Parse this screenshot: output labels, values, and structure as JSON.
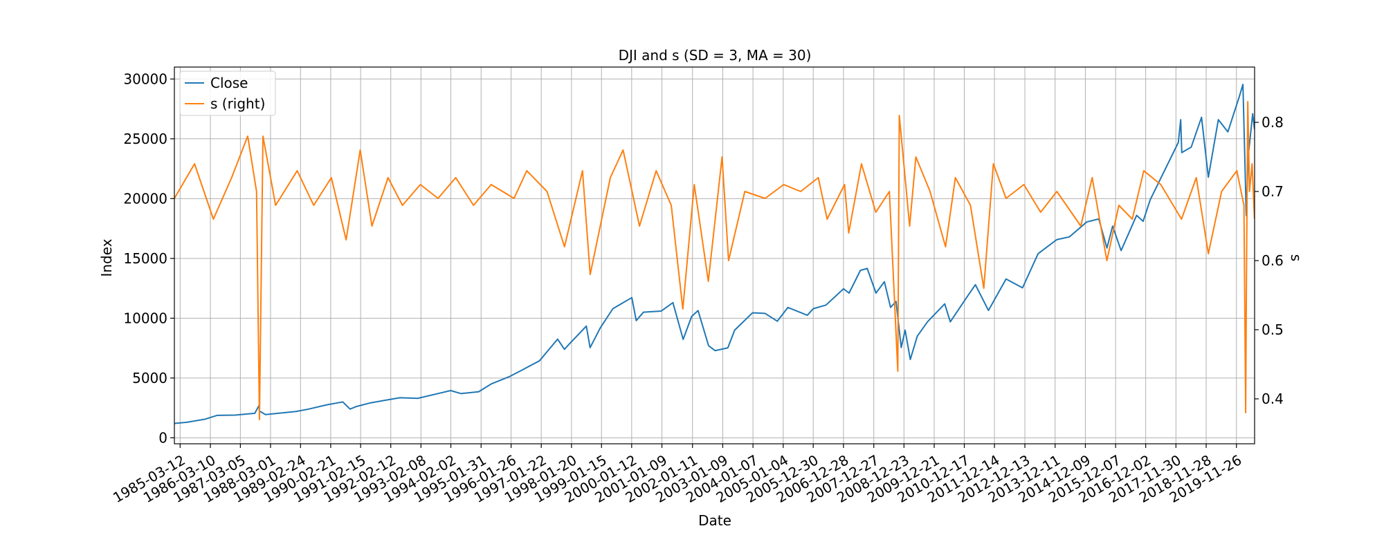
{
  "chart_data": {
    "type": "line",
    "title": "DJI and s (SD = 3, MA = 30)",
    "xlabel": "Date",
    "ylabel": "Index",
    "ylabel_right": "s",
    "grid": true,
    "legend_position": "top-left",
    "x_tick_labels": [
      "1985-03-12",
      "1986-03-10",
      "1987-03-05",
      "1988-03-01",
      "1989-02-24",
      "1990-02-21",
      "1991-02-15",
      "1992-02-12",
      "1993-02-08",
      "1994-02-02",
      "1995-01-31",
      "1996-01-26",
      "1997-01-22",
      "1998-01-20",
      "1999-01-15",
      "2000-01-12",
      "2001-01-09",
      "2002-01-11",
      "2003-01-09",
      "2004-01-07",
      "2005-01-04",
      "2005-12-30",
      "2006-12-28",
      "2007-12-27",
      "2008-12-23",
      "2009-12-21",
      "2010-12-17",
      "2011-12-14",
      "2012-12-13",
      "2013-12-11",
      "2014-12-09",
      "2015-12-07",
      "2016-12-02",
      "2017-11-30",
      "2018-11-28",
      "2019-11-26"
    ],
    "y_left": {
      "ylim": [
        -500,
        31000
      ],
      "ticks": [
        0,
        5000,
        10000,
        15000,
        20000,
        25000,
        30000
      ]
    },
    "y_right": {
      "ylim": [
        0.335,
        0.88
      ],
      "ticks": [
        0.4,
        0.5,
        0.6,
        0.7,
        0.8
      ]
    },
    "xlim": [
      "1985-01-02",
      "2020-07-01"
    ],
    "series": [
      {
        "name": "Close",
        "axis": "left",
        "color": "#1f77b4",
        "x": [
          "1985-01-02",
          "1985-06-01",
          "1986-01-01",
          "1986-06-01",
          "1987-01-01",
          "1987-08-25",
          "1987-10-16",
          "1987-10-19",
          "1987-12-31",
          "1988-06-01",
          "1989-01-01",
          "1989-06-01",
          "1990-01-01",
          "1990-07-16",
          "1990-10-11",
          "1991-01-01",
          "1991-06-01",
          "1992-01-01",
          "1992-06-01",
          "1993-01-01",
          "1994-01-31",
          "1994-06-01",
          "1995-01-01",
          "1995-06-01",
          "1996-01-01",
          "1996-06-01",
          "1997-01-01",
          "1997-08-06",
          "1997-10-27",
          "1998-01-01",
          "1998-07-17",
          "1998-08-31",
          "1999-01-01",
          "1999-06-01",
          "2000-01-14",
          "2000-03-07",
          "2000-06-01",
          "2001-01-01",
          "2001-05-21",
          "2001-09-21",
          "2002-01-01",
          "2002-03-19",
          "2002-07-23",
          "2002-10-09",
          "2003-03-11",
          "2003-06-01",
          "2004-01-01",
          "2004-06-01",
          "2004-10-25",
          "2005-03-01",
          "2005-10-20",
          "2006-01-01",
          "2006-06-01",
          "2006-12-29",
          "2007-03-05",
          "2007-07-19",
          "2007-10-09",
          "2008-01-22",
          "2008-05-02",
          "2008-07-15",
          "2008-09-19",
          "2008-11-20",
          "2009-01-06",
          "2009-03-09",
          "2009-06-01",
          "2009-10-01",
          "2010-04-26",
          "2010-07-02",
          "2011-01-01",
          "2011-04-29",
          "2011-10-03",
          "2012-05-01",
          "2012-11-15",
          "2013-05-21",
          "2013-12-31",
          "2014-06-01",
          "2014-12-26",
          "2015-05-19",
          "2015-08-25",
          "2015-11-01",
          "2016-02-11",
          "2016-08-15",
          "2016-11-01",
          "2017-01-25",
          "2017-12-29",
          "2018-01-26",
          "2018-02-08",
          "2018-06-01",
          "2018-10-03",
          "2018-12-24",
          "2019-04-23",
          "2019-08-15",
          "2019-12-31",
          "2020-02-12",
          "2020-03-23",
          "2020-04-15",
          "2020-06-08",
          "2020-06-30"
        ],
        "values": [
          1200,
          1300,
          1550,
          1880,
          1900,
          2050,
          2720,
          2250,
          1940,
          2050,
          2200,
          2400,
          2750,
          3000,
          2400,
          2630,
          2900,
          3170,
          3350,
          3300,
          3950,
          3700,
          3850,
          4500,
          5100,
          5650,
          6440,
          8250,
          7400,
          7900,
          9340,
          7540,
          9200,
          10800,
          11720,
          9800,
          10500,
          10600,
          11300,
          8230,
          10150,
          10640,
          7700,
          7290,
          7520,
          9000,
          10450,
          10400,
          9750,
          10900,
          10250,
          10800,
          11100,
          12460,
          12100,
          14000,
          14160,
          12100,
          13050,
          10900,
          11400,
          7550,
          9000,
          6550,
          8500,
          9700,
          11200,
          9700,
          11600,
          12800,
          10650,
          13280,
          12540,
          15400,
          16570,
          16800,
          18050,
          18300,
          15870,
          17700,
          15660,
          18600,
          18100,
          19900,
          24700,
          26600,
          23850,
          24300,
          26800,
          21790,
          26600,
          25580,
          28540,
          29550,
          18590,
          23500,
          27100,
          25800
        ]
      },
      {
        "name": "s (right)",
        "axis": "right",
        "color": "#ff7f0e",
        "x": [
          "1985-01-02",
          "1985-09-01",
          "1986-04-15",
          "1986-11-20",
          "1987-06-01",
          "1987-09-15",
          "1987-10-20",
          "1987-12-01",
          "1988-05-01",
          "1989-01-15",
          "1989-08-01",
          "1990-03-01",
          "1990-08-25",
          "1991-02-10",
          "1991-07-01",
          "1992-01-10",
          "1992-07-01",
          "1993-02-01",
          "1993-09-01",
          "1994-04-01",
          "1994-11-01",
          "1995-06-01",
          "1996-03-01",
          "1996-08-01",
          "1997-04-01",
          "1997-10-28",
          "1998-06-01",
          "1998-09-01",
          "1999-05-01",
          "1999-10-01",
          "2000-04-15",
          "2000-11-01",
          "2001-05-01",
          "2001-09-17",
          "2002-02-01",
          "2002-07-20",
          "2003-01-01",
          "2003-03-20",
          "2003-10-01",
          "2004-06-01",
          "2005-01-10",
          "2005-08-01",
          "2006-03-01",
          "2006-06-15",
          "2007-01-10",
          "2007-03-01",
          "2007-08-01",
          "2008-01-20",
          "2008-07-01",
          "2008-10-10",
          "2008-10-28",
          "2009-03-01",
          "2009-05-15",
          "2009-11-01",
          "2010-05-06",
          "2010-09-01",
          "2011-03-01",
          "2011-08-08",
          "2011-12-01",
          "2012-05-01",
          "2012-12-01",
          "2013-06-20",
          "2014-01-01",
          "2014-10-15",
          "2015-03-01",
          "2015-08-24",
          "2016-01-15",
          "2016-06-24",
          "2016-11-09",
          "2017-06-01",
          "2018-02-05",
          "2018-08-01",
          "2018-12-24",
          "2019-06-01",
          "2019-12-01",
          "2020-02-24",
          "2020-03-16",
          "2020-03-24",
          "2020-04-10",
          "2020-05-01",
          "2020-06-01",
          "2020-06-30"
        ],
        "values": [
          0.69,
          0.74,
          0.66,
          0.72,
          0.78,
          0.7,
          0.37,
          0.78,
          0.68,
          0.73,
          0.68,
          0.72,
          0.63,
          0.76,
          0.65,
          0.72,
          0.68,
          0.71,
          0.69,
          0.72,
          0.68,
          0.71,
          0.69,
          0.73,
          0.7,
          0.62,
          0.73,
          0.58,
          0.72,
          0.76,
          0.65,
          0.73,
          0.68,
          0.53,
          0.71,
          0.57,
          0.75,
          0.6,
          0.7,
          0.69,
          0.71,
          0.7,
          0.72,
          0.66,
          0.71,
          0.64,
          0.74,
          0.67,
          0.7,
          0.44,
          0.81,
          0.65,
          0.75,
          0.7,
          0.62,
          0.72,
          0.68,
          0.56,
          0.74,
          0.69,
          0.71,
          0.67,
          0.7,
          0.65,
          0.72,
          0.6,
          0.68,
          0.66,
          0.73,
          0.71,
          0.66,
          0.72,
          0.61,
          0.7,
          0.73,
          0.68,
          0.38,
          0.55,
          0.83,
          0.7,
          0.74,
          0.66
        ]
      }
    ]
  }
}
